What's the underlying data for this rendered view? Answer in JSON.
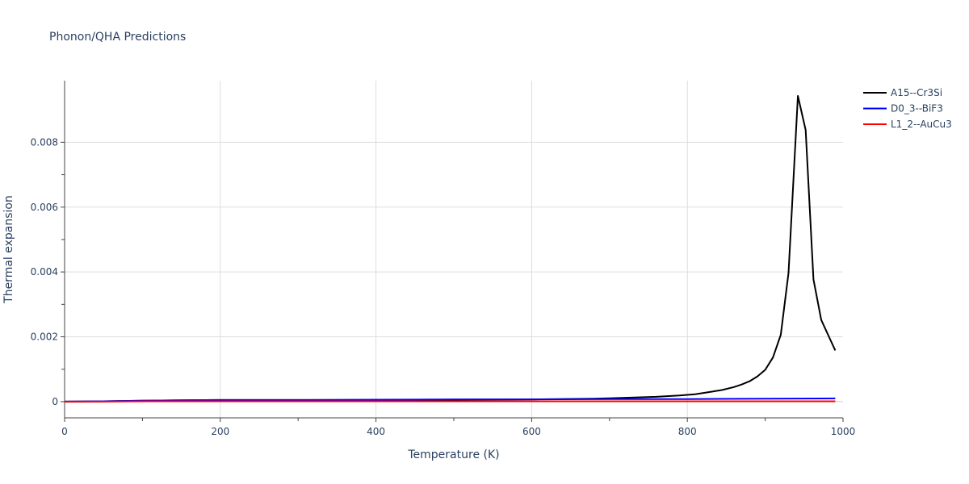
{
  "chart_data": {
    "type": "line",
    "title": "Phonon/QHA Predictions",
    "xlabel": "Temperature (K)",
    "ylabel": "Thermal expansion",
    "xlim": [
      0,
      1000
    ],
    "ylim": [
      -0.0005,
      0.0099
    ],
    "x_ticks": [
      0,
      200,
      400,
      600,
      800,
      1000
    ],
    "x_tick_labels": [
      "0",
      "200",
      "400",
      "600",
      "800",
      "1000"
    ],
    "y_ticks": [
      0,
      0.002,
      0.004,
      0.006,
      0.008
    ],
    "y_tick_labels": [
      "0",
      "0.002",
      "0.004",
      "0.006",
      "0.008"
    ],
    "grid": true,
    "legend_position": "top-right outside",
    "series": [
      {
        "name": "A15--Cr3Si",
        "color": "#000000",
        "x": [
          0,
          50,
          100,
          150,
          200,
          300,
          400,
          500,
          600,
          680,
          720,
          760,
          790,
          810,
          830,
          845,
          860,
          870,
          880,
          890,
          900,
          910,
          920,
          930,
          942,
          952,
          962,
          972,
          982,
          990
        ],
        "y": [
          0,
          1e-05,
          3e-05,
          4e-05,
          5e-05,
          5e-05,
          5e-05,
          6e-05,
          7e-05,
          9e-05,
          0.00012,
          0.00015,
          0.00019,
          0.00023,
          0.0003,
          0.00036,
          0.00045,
          0.00053,
          0.00063,
          0.00078,
          0.00098,
          0.00136,
          0.00206,
          0.00397,
          0.00943,
          0.00838,
          0.00377,
          0.00252,
          0.002,
          0.00158
        ]
      },
      {
        "name": "D0_3--BiF3",
        "color": "#0000ff",
        "x": [
          0,
          50,
          100,
          150,
          200,
          300,
          400,
          500,
          600,
          700,
          800,
          900,
          990
        ],
        "y": [
          0,
          1e-05,
          3e-05,
          4e-05,
          5e-05,
          5e-05,
          6e-05,
          7e-05,
          7e-05,
          8e-05,
          8e-05,
          9e-05,
          0.0001
        ]
      },
      {
        "name": "L1_2--AuCu3",
        "color": "#ff0000",
        "x": [
          0,
          50,
          100,
          150,
          200,
          300,
          400,
          500,
          600,
          700,
          800,
          900,
          990
        ],
        "y": [
          0,
          0.0,
          1e-05,
          1e-05,
          1e-05,
          1e-05,
          1e-05,
          1e-05,
          1e-05,
          1e-05,
          1e-05,
          1e-05,
          1e-05
        ]
      }
    ]
  }
}
